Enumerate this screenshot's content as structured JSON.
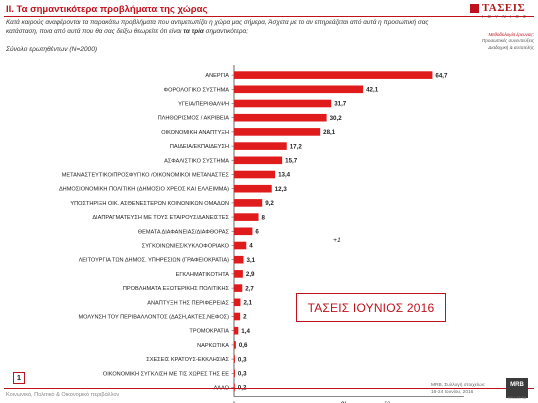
{
  "header": {
    "title": "II. Τα σημαντικότερα προβλήματα της χώρας",
    "question_part1": "Κατά καιρούς αναφέρονται τα παρακάτω προβλήματα που αντιμετωπίζει η χώρα μας σήμερα, Άσχετα με το αν επηρεάζεται από αυτά η προσωπική σας κατάσταση, ποια από αυτά που θα σας δείξω θεωρείτε ότι είναι ",
    "question_highlight": "τα τρία",
    "question_part2": " σημαντικότερα;",
    "total": "Σύνολο ερωτηθέντων (Ν=2000)",
    "logo_text": "ΤΑΣΕΙΣ",
    "logo_sub": "Ι Ο Υ Ν Ι Ο Σ",
    "method_line1": "Μεθοδολογία έρευνας:",
    "method_line2": "Προσωπικές συνεντεύξεις",
    "method_line3": "Διαδοχική & αυτοτελής"
  },
  "chart_data": {
    "type": "bar",
    "orientation": "horizontal",
    "categories": [
      "ΑΝΕΡΓΙΑ",
      "ΦΟΡΟΛΟΓΙΚΟ ΣΥΣΤΗΜΑ",
      "ΥΓΕΙΑ/ΠΕΡΙΘΑΛΨΗ",
      "ΠΛΗΘΩΡΙΣΜΟΣ / ΑΚΡΙΒΕΙΑ",
      "ΟΙΚΟΝΟΜΙΚΗ ΑΝΑΠΤΥΞΗ",
      "ΠΑΙΔΕΙΑ/ΕΚΠΑΙΔΕΥΣΗ",
      "ΑΣΦΑΛΙΣΤΙΚΟ ΣΥΣΤΗΜΑ",
      "ΜΕΤΑΝΑΣΤΕΥΤΙΚΟ/ΠΡΟΣΦΥΓΙΚΟ /ΟΙΚΟΝΟΜΙΚΟΙ ΜΕΤΑΝΑΣΤΕΣ",
      "ΔΗΜΟΣΙΟΝΟΜΙΚΗ ΠΟΛΙΤΙΚΗ (ΔΗΜΟΣΙΟ ΧΡΕΟΣ ΚΑΙ ΕΛΛΕΙΜΜΑ)",
      "ΥΠΟΣΤΗΡΙΞΗ ΟΙΚ. ΑΣΘΕΝΕΣΤΕΡΩΝ ΚΟΙΝΩΝΙΚΩΝ ΟΜΑΔΩΝ",
      "ΔΙΑΠΡΑΓΜΑΤΕΥΣΗ ΜΕ ΤΟΥΣ ΕΤΑΙΡΟΥΣ/ΔΑΝΕΙΣΤΕΣ",
      "ΘΕΜΑΤΑ ΔΙΑΦΑΝΕΙΑΣ/ΔΙΑΦΘΟΡΑΣ",
      "ΣΥΓΚΟΙΝΩΝΙΕΣ/ΚΥΚΛΟΦΟΡΙΑΚΟ",
      "ΛΕΙΤΟΥΡΓΙΑ ΤΩΝ ΔΗΜΟΣ. ΥΠΗΡΕΣΙΩΝ (ΓΡΑΦΕΙΟΚΡΑΤΙΑ)",
      "ΕΓΚΛΗΜΑΤΙΚΟΤΗΤΑ",
      "ΠΡΟΒΛΗΜΑΤΑ ΕΞΩΤΕΡΙΚΗΣ ΠΟΛΙΤΙΚΗΣ",
      "ΑΝΑΠΤΥΞΗ ΤΗΣ ΠΕΡΙΦΕΡΕΙΑΣ",
      "ΜΟΛΥΝΣΗ ΤΟΥ ΠΕΡΙΒΑΛΛΟΝΤΟΣ (ΔΑΣΗ,ΑΚΤΕΣ,ΝΕΦΟΣ)",
      "ΤΡΟΜΟΚΡΑΤΙΑ",
      "ΝΑΡΚΩΤΙΚΑ",
      "ΣΧΕΣΕΙΣ ΚΡΑΤΟΥΣ-ΕΚΚΛΗΣΙΑΣ",
      "ΟΙΚΟΝΟΜΙΚΗ ΣΥΓΚΛΙΣΗ ΜΕ ΤΙΣ ΧΩΡΕΣ ΤΗΣ ΕΕ",
      "ΑΛΛΟ"
    ],
    "values": [
      64.7,
      42.1,
      31.7,
      30.2,
      28.1,
      17.2,
      15.7,
      13.4,
      12.3,
      9.2,
      8,
      6,
      4,
      3.1,
      2.9,
      2.7,
      2.1,
      2,
      1.4,
      0.6,
      0.3,
      0.3,
      0.2
    ],
    "value_labels": [
      "64,7",
      "42,1",
      "31,7",
      "30,2",
      "28,1",
      "17,2",
      "15,7",
      "13,4",
      "12,3",
      "9,2",
      "8",
      "6",
      "4",
      "3,1",
      "2,9",
      "2,7",
      "2,1",
      "2",
      "1,4",
      "0,6",
      "0,3",
      "0,3",
      "0,2"
    ],
    "xlim": [
      0,
      75
    ],
    "x_ticks": [
      "0",
      "50"
    ],
    "xlabel": "%",
    "bar_color": "#e01b1b",
    "title": ""
  },
  "annotation": "+1",
  "stamp": "ΤΑΣΕΙΣ ΙΟΥΝΙΟΣ 2016",
  "footer": {
    "page_number": "1",
    "left_text": "Κοινωνικό, Πολιτικό & Οικονομικό περιβάλλον",
    "right_line1": "MRB, Συλλογή στοιχείων:",
    "right_line2": "16-24 Ιουνίου, 2016",
    "mrb_logo": "MRB",
    "mrb_sub": "HELLAS SA"
  }
}
